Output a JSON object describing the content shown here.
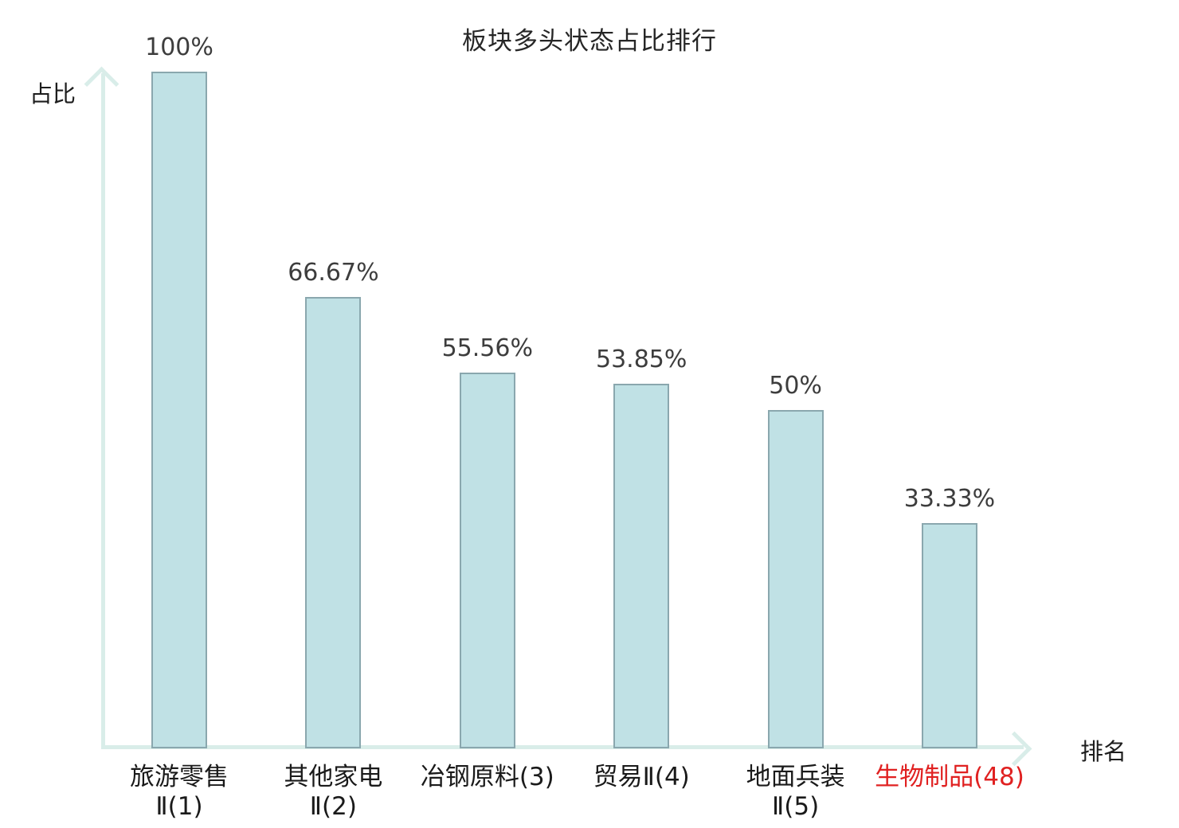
{
  "chart_data": {
    "type": "bar",
    "title": "板块多头状态占比排行",
    "xlabel": "排名",
    "ylabel": "占比",
    "categories": [
      "旅游零售Ⅱ(1)",
      "其他家电Ⅱ(2)",
      "冶钢原料(3)",
      "贸易Ⅱ(4)",
      "地面兵装Ⅱ(5)",
      "生物制品(48)"
    ],
    "category_lines": [
      [
        "旅游零售",
        "Ⅱ(1)"
      ],
      [
        "其他家电",
        "Ⅱ(2)"
      ],
      [
        "冶钢原料(3)"
      ],
      [
        "贸易Ⅱ(4)"
      ],
      [
        "地面兵装",
        "Ⅱ(5)"
      ],
      [
        "生物制品(48)"
      ]
    ],
    "values": [
      100,
      66.67,
      55.56,
      53.85,
      50,
      33.33
    ],
    "value_labels": [
      "100%",
      "66.67%",
      "55.56%",
      "53.85%",
      "50%",
      "33.33%"
    ],
    "highlight_index": 5,
    "ylim": [
      0,
      100
    ],
    "grid": false,
    "legend": null,
    "colors": {
      "bar_fill": "#c0e1e5",
      "bar_border": "#8aa7ae",
      "axis": "#d9ede9",
      "value_text": "#3d3d3d",
      "category_text": "#1a1a1a",
      "highlight_text": "#e02121"
    }
  }
}
